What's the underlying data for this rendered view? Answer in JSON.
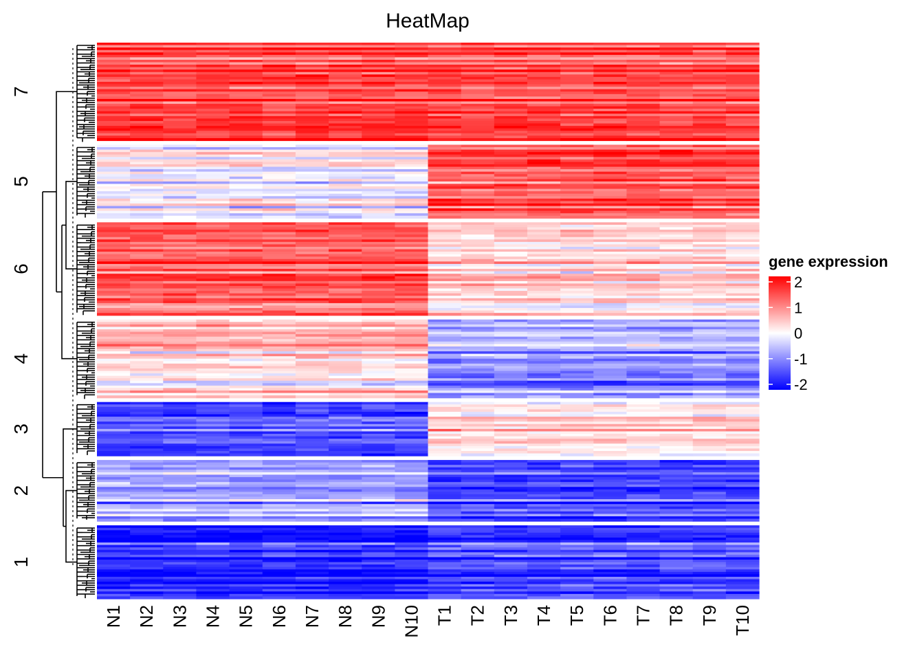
{
  "chart_data": {
    "type": "heatmap",
    "title": "HeatMap",
    "columns": [
      "N1",
      "N2",
      "N3",
      "N4",
      "N5",
      "N6",
      "N7",
      "N8",
      "N9",
      "N10",
      "T1",
      "T2",
      "T3",
      "T4",
      "T5",
      "T6",
      "T7",
      "T8",
      "T9",
      "T10"
    ],
    "row_clusters": [
      {
        "label": "7",
        "rows": 40,
        "normal_mean": 1.55,
        "tumor_mean": 1.5
      },
      {
        "label": "5",
        "rows": 30,
        "normal_mean": -0.2,
        "tumor_mean": 1.2
      },
      {
        "label": "6",
        "rows": 38,
        "normal_mean": 1.35,
        "tumor_mean": 0.4
      },
      {
        "label": "4",
        "rows": 32,
        "normal_mean": 0.3,
        "tumor_mean": -0.85
      },
      {
        "label": "3",
        "rows": 22,
        "normal_mean": -1.5,
        "tumor_mean": 0.15
      },
      {
        "label": "2",
        "rows": 25,
        "normal_mean": -0.7,
        "tumor_mean": -1.45
      },
      {
        "label": "1",
        "rows": 30,
        "normal_mean": -1.7,
        "tumor_mean": -1.4
      }
    ],
    "color_scale": {
      "min": -2,
      "max": 2,
      "low": "#0000ff",
      "mid": "#ffffff",
      "high": "#ff0000"
    },
    "legend": {
      "title": "gene expression",
      "ticks": [
        2,
        1,
        0,
        -1,
        -2
      ],
      "position": "right"
    },
    "row_dendrogram": true
  }
}
